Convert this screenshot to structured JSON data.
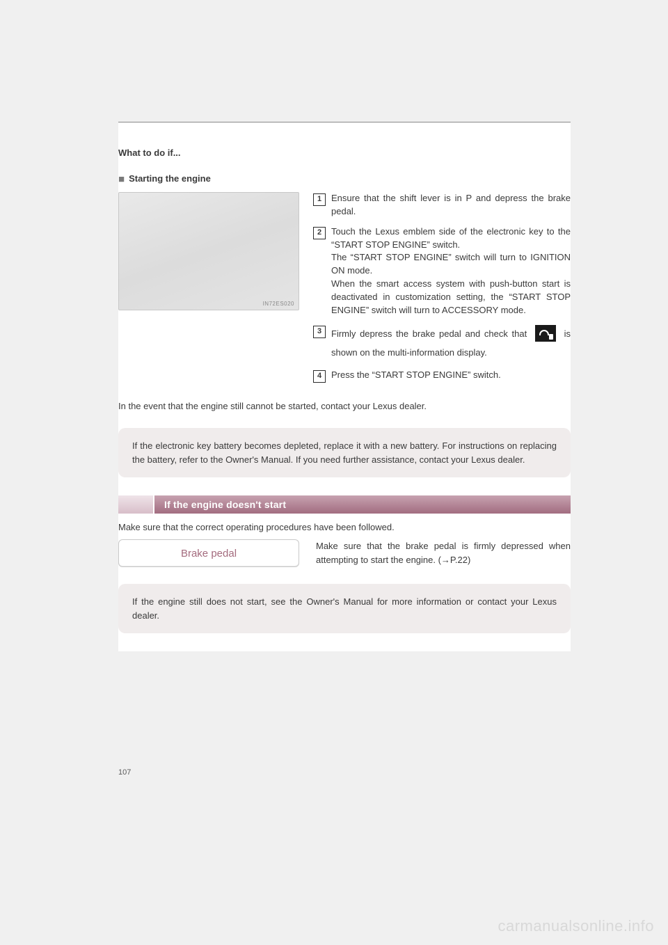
{
  "breadcrumb": "What to do if...",
  "subhead": "Starting the engine",
  "illustration_tag": "IN72ES020",
  "steps": [
    {
      "n": "1",
      "text": "Ensure that the shift lever is in P and depress the brake pedal."
    },
    {
      "n": "2",
      "text": "Touch the Lexus emblem side of the electronic key to the “START STOP ENGINE” switch.\nThe “START STOP ENGINE” switch will turn to IGNITION ON mode.\nWhen the smart access system with push-button start is deactivated in customization setting, the “START STOP ENGINE” switch will turn to ACCESSORY mode."
    },
    {
      "n": "3",
      "pre": "Firmly depress the brake pedal and check that ",
      "post": " is shown on the multi-information display."
    },
    {
      "n": "4",
      "text": "Press the “START STOP ENGINE” switch."
    }
  ],
  "note_line": "In the event that the engine still cannot be started, contact your Lexus dealer.",
  "infobox1": "If the electronic key battery becomes depleted, replace it with a new battery. For instructions on replacing the battery, refer to the Owner's Manual. If you need further assistance, contact your Lexus dealer.",
  "section2_title": "If the engine doesn't start",
  "lead2": "Make sure that the correct operating procedures have been followed.",
  "pill_label": "Brake pedal",
  "pill_desc": "Make sure that the brake pedal is firmly depressed when attempting to start the engine. (→P.22)",
  "infobox2": "If the engine still does not start, see the Owner's Manual for more information or contact your Lexus dealer.",
  "page_number": "107",
  "watermark": "carmanualsonline.info",
  "colors": {
    "section_bar_from": "#c7a2b0",
    "section_bar_to": "#a26d80",
    "pill_text": "#a46b7e",
    "infobox_bg": "#f0ecec"
  }
}
